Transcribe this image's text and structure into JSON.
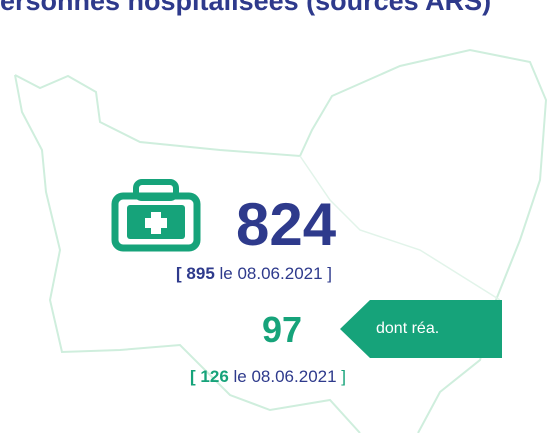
{
  "title": "Personnes hospitalisées (sources ARS)",
  "hospitalized": {
    "value": 824,
    "previous": {
      "open": "[",
      "value": 895,
      "date": "le 08.06.2021",
      "close": "]"
    }
  },
  "icu": {
    "tag": "dont réa.",
    "value": 97,
    "previous": {
      "open": "[",
      "value": 126,
      "date": "le 08.06.2021",
      "close": "]"
    }
  }
}
